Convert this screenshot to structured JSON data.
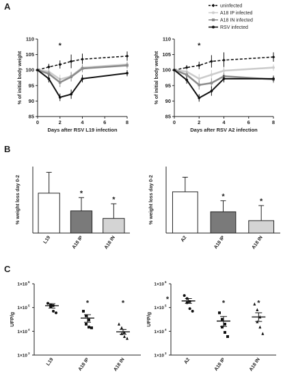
{
  "panel_labels": [
    "A",
    "B",
    "C"
  ],
  "legend": [
    {
      "label": "uninfected",
      "color": "#111111",
      "dashed": true,
      "marker": "diamond"
    },
    {
      "label": "A18 IP infected",
      "color": "#cccccc",
      "dashed": false,
      "marker": "circle"
    },
    {
      "label": "A18 IN infected",
      "color": "#8c8c8c",
      "dashed": false,
      "marker": "square"
    },
    {
      "label": "RSV infected",
      "color": "#111111",
      "dashed": false,
      "marker": "circle"
    }
  ],
  "chart_data": [
    {
      "type": "line",
      "xlabel": "Days after RSV L19 infection",
      "ylabel": "% of initial body weight",
      "xlim": [
        0,
        8
      ],
      "ylim": [
        85,
        110
      ],
      "xticks": [
        0,
        2,
        4,
        6,
        8
      ],
      "yticks": [
        85,
        90,
        95,
        100,
        105,
        110
      ],
      "annotations": [
        {
          "x": 2,
          "y": 108,
          "text": "*"
        }
      ],
      "series": [
        {
          "name": "uninfected",
          "x": [
            0,
            1,
            2,
            3,
            4,
            8
          ],
          "y": [
            100,
            101,
            101.8,
            102.8,
            103.5,
            104.5
          ],
          "err": [
            0,
            1,
            1.3,
            2.2,
            1.8,
            1.5
          ]
        },
        {
          "name": "A18 IP infected",
          "x": [
            0,
            1,
            2,
            3,
            4,
            8
          ],
          "y": [
            100,
            99.5,
            97,
            98,
            100.8,
            101.8
          ],
          "err": [
            0,
            1,
            1.5,
            1.5,
            1.2,
            1
          ]
        },
        {
          "name": "A18 IN infected",
          "x": [
            0,
            1,
            2,
            3,
            4,
            8
          ],
          "y": [
            100,
            98.8,
            96,
            97.8,
            100.5,
            101.5
          ],
          "err": [
            0,
            1,
            1.5,
            1.5,
            1.2,
            1
          ]
        },
        {
          "name": "RSV infected",
          "x": [
            0,
            1,
            2,
            3,
            4,
            8
          ],
          "y": [
            100,
            97.2,
            91.2,
            92.2,
            97.2,
            99
          ],
          "err": [
            0,
            1.2,
            1.2,
            1.5,
            1.2,
            1
          ]
        }
      ]
    },
    {
      "type": "line",
      "xlabel": "Days after RSV A2 infection",
      "ylabel": "% of initial body weight",
      "xlim": [
        0,
        8
      ],
      "ylim": [
        85,
        110
      ],
      "xticks": [
        0,
        2,
        4,
        6,
        8
      ],
      "yticks": [
        85,
        90,
        95,
        100,
        105,
        110
      ],
      "annotations": [
        {
          "x": 2,
          "y": 108,
          "text": "*"
        }
      ],
      "series": [
        {
          "name": "uninfected",
          "x": [
            0,
            1,
            2,
            3,
            4,
            8
          ],
          "y": [
            100,
            100.8,
            101.5,
            102.8,
            103.2,
            104.2
          ],
          "err": [
            0,
            0.8,
            1.2,
            2,
            2.5,
            1.5
          ]
        },
        {
          "name": "A18 IP infected",
          "x": [
            0,
            1,
            2,
            3,
            4,
            8
          ],
          "y": [
            100,
            99.5,
            97.2,
            98.5,
            99.8,
            100.8
          ],
          "err": [
            0,
            1,
            1.5,
            1.5,
            1.2,
            1
          ]
        },
        {
          "name": "A18 IN infected",
          "x": [
            0,
            1,
            2,
            3,
            4,
            8
          ],
          "y": [
            100,
            98.5,
            95.2,
            95.8,
            98,
            97
          ],
          "err": [
            0,
            1,
            1.5,
            1.5,
            1.2,
            1.2
          ]
        },
        {
          "name": "RSV infected",
          "x": [
            0,
            1,
            2,
            3,
            4,
            8
          ],
          "y": [
            100,
            96.8,
            91,
            93.2,
            97.2,
            97.2
          ],
          "err": [
            0,
            1.2,
            1.2,
            1.5,
            1.2,
            1
          ]
        }
      ]
    },
    {
      "type": "bar",
      "ylabel": "% weight loss day 0-2",
      "categories": [
        "L19",
        "A18 IP",
        "A18 IN"
      ],
      "colors": [
        "#ffffff",
        "#7a7a7a",
        "#d4d4d4"
      ],
      "values": [
        9,
        5,
        3.3
      ],
      "errors": [
        4.7,
        3,
        3.3
      ],
      "significance": [
        "",
        "*",
        "*"
      ],
      "ylim": [
        0,
        15
      ]
    },
    {
      "type": "bar",
      "ylabel": "% weight loss day 0-2",
      "categories": [
        "A2",
        "A18 IP",
        "A18 IN"
      ],
      "colors": [
        "#ffffff",
        "#7a7a7a",
        "#d4d4d4"
      ],
      "values": [
        9.3,
        4.8,
        2.8
      ],
      "errors": [
        3.3,
        2.5,
        3.4
      ],
      "significance": [
        "",
        "*",
        "*"
      ],
      "ylim": [
        0,
        15
      ]
    },
    {
      "type": "scatter",
      "ylabel": "UFP/g",
      "log_scale": true,
      "ylim": [
        1000,
        1000000
      ],
      "ytick_labels": [
        {
          "value": 1000,
          "mantissa": "1×10",
          "exp": "3"
        },
        {
          "value": 10000,
          "mantissa": "1×10",
          "exp": "4"
        },
        {
          "value": 100000,
          "mantissa": "1×10",
          "exp": "5"
        },
        {
          "value": 1000000,
          "mantissa": "1×10",
          "exp": "6"
        }
      ],
      "categories": [
        "L19",
        "A18 IP",
        "A18 IN"
      ],
      "markers": [
        "circle",
        "square",
        "triangle"
      ],
      "points": [
        [
          150000,
          130000,
          120000,
          110000,
          70000,
          60000
        ],
        [
          70000,
          45000,
          30000,
          20000,
          15000,
          14000
        ],
        [
          20000,
          14000,
          9000,
          8000,
          6000,
          5000
        ]
      ],
      "means": [
        120000,
        36000,
        9500
      ],
      "sem_low": [
        95000,
        24000,
        7500
      ],
      "sem_high": [
        145000,
        50000,
        12000
      ],
      "significance": [
        "",
        "*",
        "*"
      ]
    },
    {
      "type": "scatter",
      "ylabel": "UFP/g",
      "log_scale": true,
      "ylim": [
        1000,
        1000000
      ],
      "ytick_labels": [
        {
          "value": 1000,
          "mantissa": "1×10",
          "exp": "3"
        },
        {
          "value": 10000,
          "mantissa": "1×10",
          "exp": "4"
        },
        {
          "value": 100000,
          "mantissa": "1×10",
          "exp": "5"
        },
        {
          "value": 1000000,
          "mantissa": "1×10",
          "exp": "6"
        }
      ],
      "categories": [
        "A2",
        "A18 IP",
        "A18 IN"
      ],
      "markers": [
        "circle",
        "square",
        "triangle"
      ],
      "points": [
        [
          320000,
          240000,
          180000,
          160000,
          90000,
          70000
        ],
        [
          60000,
          32000,
          20000,
          15000,
          9000,
          6000
        ],
        [
          140000,
          80000,
          40000,
          25000,
          15000,
          8000
        ]
      ],
      "means": [
        190000,
        27000,
        40000
      ],
      "sem_low": [
        150000,
        16000,
        26000
      ],
      "sem_high": [
        240000,
        42000,
        60000
      ],
      "significance": [
        "*",
        "*",
        "*"
      ]
    }
  ]
}
